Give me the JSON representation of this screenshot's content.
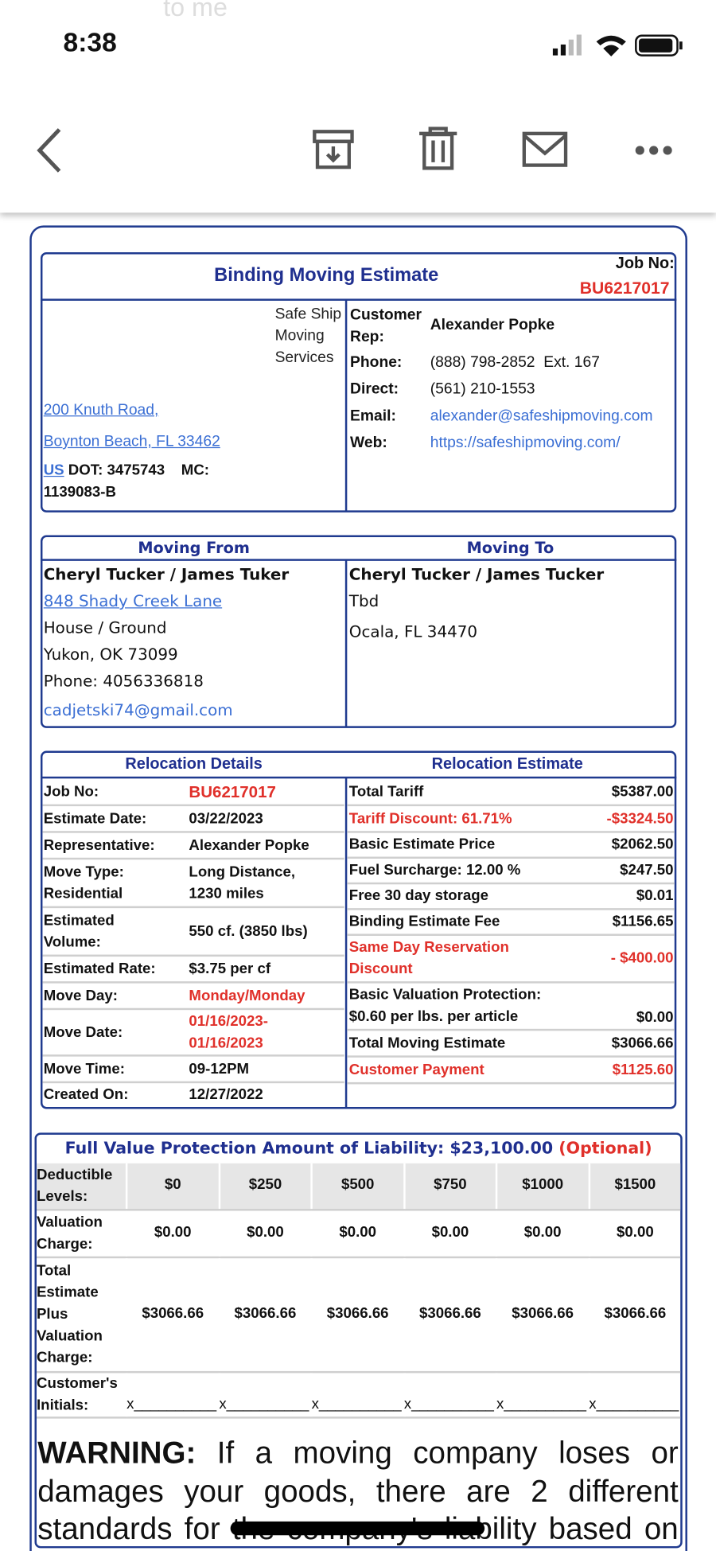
{
  "status_bar": {
    "time": "8:38"
  },
  "faded_header": "to me",
  "estimate": {
    "title": "Binding Moving Estimate",
    "job_no_label": "Job No:",
    "job_no": "BU6217017",
    "company": {
      "name": "Safe Ship Moving Services",
      "address": [
        "200 Knuth Road,",
        "Boynton Beach, FL 33462",
        "US"
      ],
      "dot": "DOT: 3475743",
      "mc": "MC: 1139083-B"
    },
    "contact": [
      {
        "label": "Customer Rep:",
        "value": "Alexander Popke"
      },
      {
        "label": "Phone:",
        "value": "(888) 798-2852  Ext. 167"
      },
      {
        "label": "Direct:",
        "value": "(561) 210-1553"
      },
      {
        "label": "Email:",
        "value": "alexander@safeshipmoving.com"
      },
      {
        "label": "Web:",
        "value": "https://safeshipmoving.com/"
      }
    ]
  },
  "moving": {
    "from": {
      "heading": "Moving From",
      "name": "Cheryl Tucker / James Tuker",
      "lines": [
        "848 Shady Creek Lane",
        "House / Ground",
        "Yukon, OK 73099",
        "Phone: 4056336818",
        "cadjetski74@gmail.com"
      ]
    },
    "to": {
      "heading": "Moving To",
      "name": "Cheryl Tucker / James Tucker",
      "lines": [
        "Tbd",
        "Ocala, FL 34470"
      ]
    }
  },
  "relocation_details": {
    "heading": "Relocation Details",
    "rows": [
      {
        "label": "Job No:",
        "value": "BU6217017"
      },
      {
        "label": "Estimate Date:",
        "value": "03/22/2023"
      },
      {
        "label": "Representative:",
        "value": "Alexander Popke"
      },
      {
        "label": "Move Type:\nResidential",
        "value": "Long Distance,\n1230 miles"
      },
      {
        "label": "Estimated\nVolume:",
        "value": "550 cf. (3850 lbs)"
      },
      {
        "label": "Estimated Rate:",
        "value": "$3.75 per cf"
      },
      {
        "label": "Move Day:",
        "value": "Monday/Monday"
      },
      {
        "label": "Move Date:",
        "value": "01/16/2023-\n01/16/2023"
      },
      {
        "label": "Move Time:",
        "value": "09-12PM"
      },
      {
        "label": "Created On:",
        "value": "12/27/2022"
      }
    ]
  },
  "relocation_estimate": {
    "heading": "Relocation Estimate",
    "rows": [
      {
        "label": "Total Tariff",
        "value": "$5387.00"
      },
      {
        "label": "Tariff Discount: 61.71%",
        "value": "-$3324.50"
      },
      {
        "label": "Basic Estimate Price",
        "value": "$2062.50"
      },
      {
        "label": "Fuel Surcharge: 12.00 %",
        "value": "$247.50"
      },
      {
        "label": "Free 30 day storage",
        "value": "$0.01"
      },
      {
        "label": "Binding Estimate Fee",
        "value": "$1156.65"
      },
      {
        "label": "Same Day Reservation\nDiscount",
        "value": "- $400.00"
      },
      {
        "label": "Basic Valuation Protection:\n$0.60 per lbs. per article",
        "value": "$0.00"
      },
      {
        "label": "Total Moving Estimate",
        "value": "$3066.66"
      },
      {
        "label": "Customer Payment",
        "value": "$1125.60"
      }
    ]
  },
  "valuation": {
    "title": "Full Value Protection Amount of Liability: $23,100.00",
    "optional": "(Optional)",
    "header_label": "Deductible\nLevels:",
    "levels": [
      "$0",
      "$250",
      "$500",
      "$750",
      "$1000",
      "$1500"
    ],
    "rows": [
      {
        "label": "Valuation\nCharge:",
        "values": [
          "$0.00",
          "$0.00",
          "$0.00",
          "$0.00",
          "$0.00",
          "$0.00"
        ]
      },
      {
        "label": "Total\nEstimate\nPlus\nValuation\nCharge:",
        "values": [
          "$3066.66",
          "$3066.66",
          "$3066.66",
          "$3066.66",
          "$3066.66",
          "$3066.66"
        ]
      },
      {
        "label": "Customer's\nInitials:",
        "values": [
          "x__________",
          "x__________",
          "x__________",
          "x__________",
          "x__________",
          "x__________"
        ]
      }
    ]
  },
  "warning": {
    "label": "WARNING:",
    "text": "If a moving company loses or damages your goods, there are 2 different standards for the company's liability based on"
  }
}
